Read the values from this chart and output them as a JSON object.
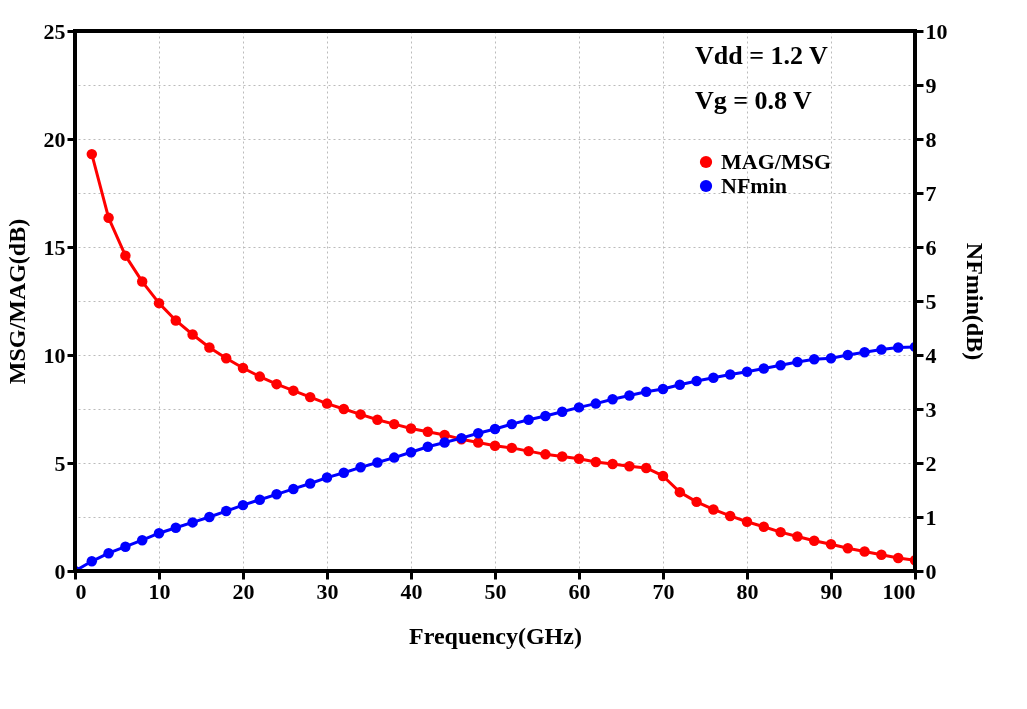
{
  "chart_data": {
    "type": "line",
    "xlabel": "Frequency(GHz)",
    "ylabel": "MSG/MAG(dB)",
    "y2label": "NFmin(dB)",
    "annotations": [
      "Vdd = 1.2 V",
      "Vg = 0.8 V"
    ],
    "xlim": [
      0,
      100
    ],
    "xticks": [
      0,
      10,
      20,
      30,
      40,
      50,
      60,
      70,
      80,
      90,
      100
    ],
    "ylim": [
      0,
      25
    ],
    "yticks": [
      0,
      5,
      10,
      15,
      20,
      25
    ],
    "y2lim": [
      0,
      10
    ],
    "y2ticks": [
      0,
      1,
      2,
      3,
      4,
      5,
      6,
      7,
      8,
      9,
      10
    ],
    "grid": true,
    "legend": "top right",
    "marker": "circle",
    "line_style": "solid",
    "series": [
      {
        "name": "MAG/MSG",
        "color": "#ff0000",
        "x": [
          2,
          4,
          6,
          8,
          10,
          12,
          14,
          16,
          18,
          20,
          22,
          24,
          26,
          28,
          30,
          32,
          34,
          36,
          38,
          40,
          42,
          44,
          46,
          48,
          50,
          52,
          54,
          56,
          58,
          60,
          62,
          64,
          66,
          68,
          70,
          72,
          74,
          76,
          78,
          80,
          82,
          84,
          86,
          88,
          90,
          92,
          94,
          96,
          98,
          100
        ],
        "values": [
          19.3,
          16.35,
          14.6,
          13.4,
          12.4,
          11.6,
          10.95,
          10.35,
          9.85,
          9.4,
          9.0,
          8.65,
          8.35,
          8.05,
          7.75,
          7.5,
          7.25,
          7.0,
          6.8,
          6.6,
          6.45,
          6.3,
          6.1,
          5.95,
          5.8,
          5.7,
          5.55,
          5.4,
          5.3,
          5.2,
          5.05,
          4.95,
          4.85,
          4.77,
          4.4,
          3.65,
          3.2,
          2.85,
          2.55,
          2.28,
          2.05,
          1.8,
          1.6,
          1.4,
          1.24,
          1.05,
          0.9,
          0.75,
          0.6,
          0.5
        ]
      },
      {
        "name": "NFmin",
        "color": "#0000ff",
        "axis": "y2",
        "x": [
          0,
          2,
          4,
          6,
          8,
          10,
          12,
          14,
          16,
          18,
          20,
          22,
          24,
          26,
          28,
          30,
          32,
          34,
          36,
          38,
          40,
          42,
          44,
          46,
          48,
          50,
          52,
          54,
          56,
          58,
          60,
          62,
          64,
          66,
          68,
          70,
          72,
          74,
          76,
          78,
          80,
          82,
          84,
          86,
          88,
          90,
          92,
          94,
          96,
          98,
          100
        ],
        "values": [
          0.0,
          0.18,
          0.33,
          0.45,
          0.57,
          0.7,
          0.8,
          0.9,
          1.0,
          1.11,
          1.22,
          1.32,
          1.42,
          1.52,
          1.62,
          1.73,
          1.82,
          1.92,
          2.01,
          2.1,
          2.2,
          2.3,
          2.38,
          2.46,
          2.55,
          2.63,
          2.72,
          2.8,
          2.87,
          2.95,
          3.03,
          3.1,
          3.18,
          3.25,
          3.32,
          3.37,
          3.45,
          3.52,
          3.58,
          3.64,
          3.69,
          3.75,
          3.81,
          3.87,
          3.92,
          3.94,
          4.0,
          4.05,
          4.1,
          4.14,
          4.15
        ]
      }
    ]
  }
}
